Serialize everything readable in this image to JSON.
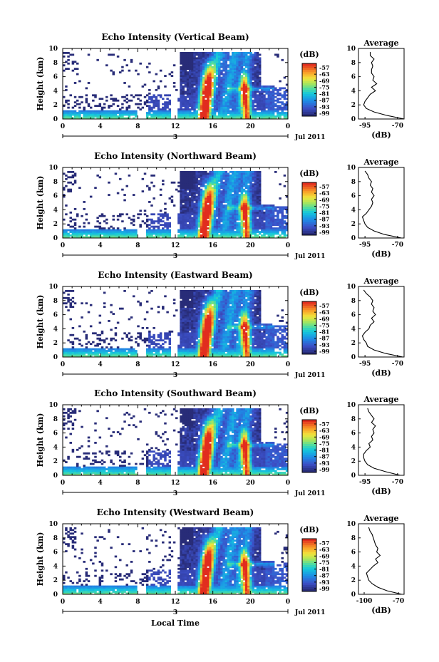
{
  "xlabel": "Local Time",
  "chart_data": [
    {
      "type": "heatmap",
      "title": "Echo Intensity (Vertical Beam)",
      "ylabel": "Height (km)",
      "ylim": [
        0,
        10
      ],
      "yticks": [
        "0",
        "2",
        "4",
        "6",
        "8",
        "10"
      ],
      "xticks": [
        "0",
        "4",
        "8",
        "12",
        "16",
        "20",
        "0"
      ],
      "date_label": "3",
      "month_label": "Jul 2011",
      "colorbar": {
        "unit": "(dB)",
        "ticks": [
          "-57",
          "-63",
          "-69",
          "-75",
          "-81",
          "-87",
          "-93",
          "-99"
        ]
      },
      "average": {
        "title": "Average",
        "xlabel": "(dB)",
        "xticks": [
          "-95",
          "-70"
        ],
        "xlim": [
          -100,
          -65
        ],
        "height": [
          0,
          0.5,
          1,
          1.5,
          2,
          2.5,
          3,
          3.5,
          4,
          4.5,
          5,
          5.5,
          6,
          6.5,
          7,
          7.5,
          8,
          8.5,
          9,
          9.5
        ],
        "db": [
          -65,
          -78,
          -88,
          -94,
          -96,
          -95,
          -93,
          -91,
          -87,
          -90,
          -86,
          -89,
          -88,
          -90,
          -90,
          -89,
          -90,
          -88,
          -91,
          -91
        ]
      }
    },
    {
      "type": "heatmap",
      "title": "Echo Intensity (Northward Beam)",
      "ylabel": "Height (km)",
      "ylim": [
        0,
        10
      ],
      "yticks": [
        "0",
        "2",
        "4",
        "6",
        "8",
        "10"
      ],
      "xticks": [
        "0",
        "4",
        "8",
        "12",
        "16",
        "20",
        "0"
      ],
      "date_label": "3",
      "month_label": "Jul 2011",
      "colorbar": {
        "unit": "(dB)",
        "ticks": [
          "-57",
          "-63",
          "-69",
          "-75",
          "-81",
          "-87",
          "-93",
          "-99"
        ]
      },
      "average": {
        "title": "Average",
        "xlabel": "(dB)",
        "xticks": [
          "-95",
          "-70"
        ],
        "xlim": [
          -100,
          -65
        ],
        "height": [
          0,
          0.5,
          1,
          1.5,
          2,
          2.5,
          3,
          3.5,
          4,
          4.5,
          5,
          5.5,
          6,
          6.5,
          7,
          7.5,
          8,
          8.5,
          9,
          9.5
        ],
        "db": [
          -67,
          -80,
          -88,
          -93,
          -95,
          -96,
          -97,
          -94,
          -92,
          -90,
          -89,
          -90,
          -88,
          -90,
          -89,
          -91,
          -90,
          -92,
          -93,
          -95
        ]
      }
    },
    {
      "type": "heatmap",
      "title": "Echo Intensity (Eastward Beam)",
      "ylabel": "Height (km)",
      "ylim": [
        0,
        10
      ],
      "yticks": [
        "0",
        "2",
        "4",
        "6",
        "8",
        "10"
      ],
      "xticks": [
        "0",
        "4",
        "8",
        "12",
        "16",
        "20",
        "0"
      ],
      "date_label": "3",
      "month_label": "Jul 2011",
      "colorbar": {
        "unit": "(dB)",
        "ticks": [
          "-57",
          "-63",
          "-69",
          "-75",
          "-81",
          "-87",
          "-93",
          "-99"
        ]
      },
      "average": {
        "title": "Average",
        "xlabel": "(dB)",
        "xticks": [
          "-95",
          "-70"
        ],
        "xlim": [
          -100,
          -65
        ],
        "height": [
          0,
          0.5,
          1,
          1.5,
          2,
          2.5,
          3,
          3.5,
          4,
          4.5,
          5,
          5.5,
          6,
          6.5,
          7,
          7.5,
          8,
          8.5,
          9,
          9.5
        ],
        "db": [
          -66,
          -79,
          -88,
          -93,
          -94,
          -96,
          -97,
          -95,
          -92,
          -91,
          -88,
          -90,
          -87,
          -89,
          -88,
          -90,
          -89,
          -91,
          -94,
          -96
        ]
      }
    },
    {
      "type": "heatmap",
      "title": "Echo Intensity (Southward Beam)",
      "ylabel": "Height (km)",
      "ylim": [
        0,
        10
      ],
      "yticks": [
        "0",
        "2",
        "4",
        "6",
        "8",
        "10"
      ],
      "xticks": [
        "0",
        "4",
        "8",
        "12",
        "16",
        "20",
        "0"
      ],
      "date_label": "3",
      "month_label": "Jul 2011",
      "colorbar": {
        "unit": "(dB)",
        "ticks": [
          "-57",
          "-63",
          "-69",
          "-75",
          "-81",
          "-87",
          "-93",
          "-99"
        ]
      },
      "average": {
        "title": "Average",
        "xlabel": "(dB)",
        "xticks": [
          "-95",
          "-70"
        ],
        "xlim": [
          -100,
          -65
        ],
        "height": [
          0,
          0.5,
          1,
          1.5,
          2,
          2.5,
          3,
          3.5,
          4,
          4.5,
          5,
          5.5,
          6,
          6.5,
          7,
          7.5,
          8,
          8.5,
          9,
          9.5
        ],
        "db": [
          -68,
          -79,
          -88,
          -93,
          -95,
          -96,
          -96,
          -94,
          -91,
          -92,
          -89,
          -90,
          -88,
          -89,
          -87,
          -90,
          -88,
          -90,
          -92,
          -93
        ]
      }
    },
    {
      "type": "heatmap",
      "title": "Echo Intensity (Westward Beam)",
      "ylabel": "Height (km)",
      "ylim": [
        0,
        10
      ],
      "yticks": [
        "0",
        "2",
        "4",
        "6",
        "8",
        "10"
      ],
      "xticks": [
        "0",
        "4",
        "8",
        "12",
        "16",
        "20",
        "0"
      ],
      "date_label": "3",
      "month_label": "Jul 2011",
      "colorbar": {
        "unit": "(dB)",
        "ticks": [
          "-57",
          "-63",
          "-69",
          "-75",
          "-81",
          "-87",
          "-93",
          "-99"
        ]
      },
      "average": {
        "title": "Average",
        "xlabel": "(dB)",
        "xticks": [
          "-100",
          "-70"
        ],
        "xlim": [
          -105,
          -65
        ],
        "height": [
          0,
          0.5,
          1,
          1.5,
          2,
          2.5,
          3,
          3.5,
          4,
          4.5,
          5,
          5.5,
          6,
          6.5,
          7,
          7.5,
          8,
          8.5,
          9,
          9.5
        ],
        "db": [
          -67,
          -80,
          -88,
          -93,
          -96,
          -97,
          -98,
          -95,
          -92,
          -88,
          -90,
          -86,
          -89,
          -88,
          -90,
          -91,
          -92,
          -93,
          -95,
          -96
        ]
      }
    }
  ]
}
